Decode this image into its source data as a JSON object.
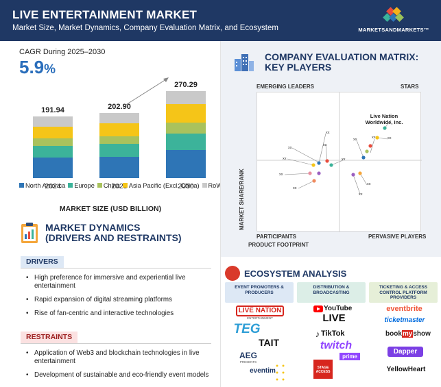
{
  "header": {
    "title": "LIVE ENTERTAINMENT MARKET",
    "subtitle": "Market Size, Market Dynamics, Company Evaluation Matrix, and Ecosystem",
    "logo_text": "MARKETSANDMARKETS™"
  },
  "cagr": {
    "label": "CAGR During 2025–2030",
    "value": "5.9",
    "unit": "%"
  },
  "chart_data": {
    "type": "bar",
    "stacked": true,
    "categories": [
      "2024",
      "2025",
      "2030"
    ],
    "totals": [
      191.94,
      202.9,
      270.29
    ],
    "total_labels": [
      "191.94",
      "202.90",
      "270.29"
    ],
    "series": [
      {
        "name": "North America",
        "color": "#2e75b6",
        "values": [
          63,
          66,
          87
        ]
      },
      {
        "name": "Europe",
        "color": "#3cb39a",
        "values": [
          38,
          40,
          52
        ]
      },
      {
        "name": "China",
        "color": "#a9c25d",
        "values": [
          22,
          24,
          34
        ]
      },
      {
        "name": "Asia Pacific (Excl. China)",
        "color": "#f5c518",
        "values": [
          38,
          40,
          58
        ]
      },
      {
        "name": "RoW",
        "color": "#c9c9c9",
        "values": [
          30.94,
          32.9,
          39.29
        ]
      }
    ],
    "xlabel": "MARKET SIZE (USD BILLION)",
    "ylim": [
      0,
      300
    ]
  },
  "dynamics": {
    "title_line1": "MARKET DYNAMICS",
    "title_line2": "(DRIVERS AND RESTRAINTS)",
    "drivers_label": "DRIVERS",
    "drivers": [
      "High preference for immersive and experiential live entertainment",
      "Rapid expansion of digital streaming platforms",
      "Rise of fan-centric and interactive technologies"
    ],
    "restraints_label": "RESTRAINTS",
    "restraints": [
      "Application of Web3 and blockchain technologies in live entertainment",
      "Development of sustainable and eco-friendly event models"
    ]
  },
  "matrix": {
    "title_line1": "COMPANY EVALUATION MATRIX:",
    "title_line2": "KEY PLAYERS",
    "q_emerging": "EMERGING LEADERS",
    "q_stars": "STARS",
    "q_participants": "PARTICIPANTS",
    "q_pervasive": "PERVASIVE PLAYERS",
    "y_axis": "MARKET SHARE/RANK",
    "x_axis": "PRODUCT FOOTPRINT",
    "highlight": "Live Nation Worldwide, Inc.",
    "placeholder": "xx"
  },
  "ecosystem": {
    "title": "ECOSYSTEM ANALYSIS",
    "columns": [
      {
        "head": "EVENT PROMOTERS & PRODUCERS",
        "color": "#dde8f5"
      },
      {
        "head": "DISTRIBUTION & BROADCASTING",
        "color": "#dceee7"
      },
      {
        "head": "TICKETING & ACCESS CONTROL PLATFORM PROVIDERS",
        "color": "#e6efd8"
      }
    ],
    "brands_col1": [
      "LIVE NATION",
      "TEG",
      "TAIT",
      "AEG",
      "eventim"
    ],
    "live_nation_sub": "ENTERTAINMENT",
    "aeg_sub": "PRESENTS",
    "brands_col2": [
      "YouTube",
      "LIVE",
      "TikTok",
      "twitch",
      "prime",
      "STAGE ACCESS"
    ],
    "brands_col3": [
      "eventbrite",
      "ticketmaster",
      "book",
      "my",
      "show",
      "Dapper",
      "YellowHeart"
    ]
  }
}
